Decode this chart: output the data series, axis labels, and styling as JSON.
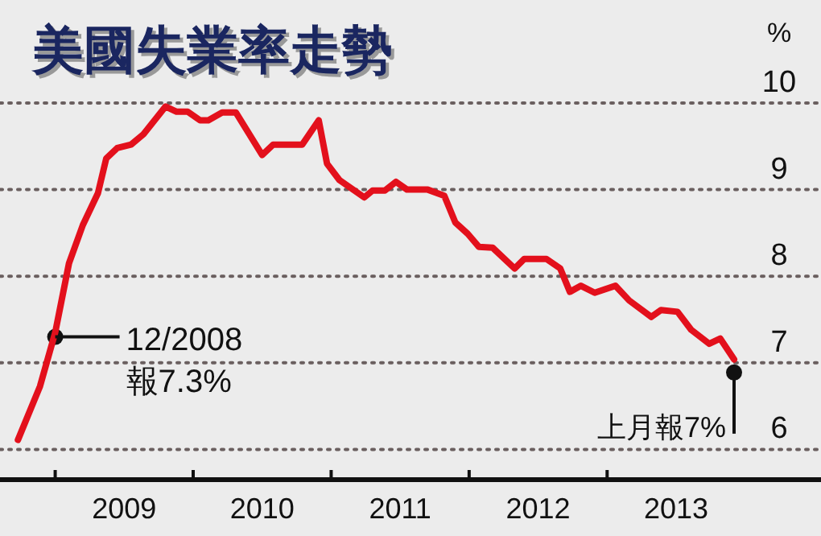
{
  "chart_data": {
    "type": "line",
    "title": "美國失業率走勢",
    "ylabel": "%",
    "series": [
      {
        "color": "#e3101c",
        "x": [
          2008.73,
          2008.89,
          2009.0,
          2009.1,
          2009.2,
          2009.31,
          2009.37,
          2009.45,
          2009.55,
          2009.64,
          2009.8,
          2009.88,
          2009.96,
          2010.05,
          2010.11,
          2010.21,
          2010.31,
          2010.5,
          2010.58,
          2010.79,
          2010.91,
          2010.97,
          2011.06,
          2011.24,
          2011.3,
          2011.39,
          2011.47,
          2011.55,
          2011.7,
          2011.82,
          2011.9,
          2011.99,
          2012.07,
          2012.17,
          2012.33,
          2012.4,
          2012.56,
          2012.66,
          2012.73,
          2012.81,
          2012.91,
          2013.06,
          2013.16,
          2013.32,
          2013.39,
          2013.51,
          2013.61,
          2013.74,
          2013.82,
          2013.92
        ],
        "values": [
          6.11,
          6.73,
          7.35,
          8.15,
          8.59,
          8.96,
          9.36,
          9.48,
          9.52,
          9.64,
          9.96,
          9.9,
          9.9,
          9.8,
          9.8,
          9.89,
          9.89,
          9.4,
          9.52,
          9.52,
          9.8,
          9.3,
          9.11,
          8.91,
          8.99,
          8.99,
          9.09,
          9.0,
          9.0,
          8.93,
          8.62,
          8.49,
          8.34,
          8.33,
          8.09,
          8.2,
          8.2,
          8.09,
          7.82,
          7.89,
          7.81,
          7.89,
          7.72,
          7.53,
          7.61,
          7.59,
          7.38,
          7.22,
          7.28,
          7.04
        ]
      }
    ],
    "xlim": [
      2008.6,
      2014.55
    ],
    "xticks": [
      {
        "value": 2009,
        "label": null
      },
      {
        "value": 2009.5,
        "label": "2009"
      },
      {
        "value": 2010,
        "label": null
      },
      {
        "value": 2010.5,
        "label": "2010"
      },
      {
        "value": 2011,
        "label": null
      },
      {
        "value": 2011.5,
        "label": "2011"
      },
      {
        "value": 2012,
        "label": null
      },
      {
        "value": 2012.5,
        "label": "2012"
      },
      {
        "value": 2013,
        "label": null
      },
      {
        "value": 2013.5,
        "label": "2013"
      }
    ],
    "ylim": [
      5.67,
      10
    ],
    "yticks": [
      6,
      7,
      8,
      9,
      10
    ],
    "grid": "y",
    "annotations": [
      {
        "text": "12/2008\n報7.3%",
        "x": 2009.0,
        "y": 7.3
      },
      {
        "text": "上月報7%",
        "x": 2013.92,
        "y": 7.0
      }
    ]
  }
}
